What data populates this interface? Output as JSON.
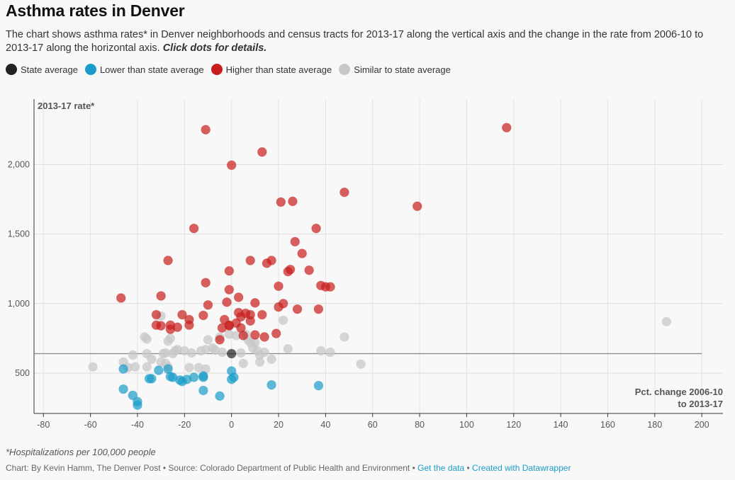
{
  "title": "Asthma rates in Denver",
  "description": {
    "text": "The chart shows asthma rates* in Denver neighborhoods and census tracts for 2013-17 along the vertical axis and the change in the rate from 2006-10 to 2013-17 along the horizontal axis.",
    "emphasis": "Click dots for details."
  },
  "legend": [
    {
      "label": "State average",
      "color": "#222222"
    },
    {
      "label": "Lower than state average",
      "color": "#1a9cc8"
    },
    {
      "label": "Higher than state average",
      "color": "#c71e1d"
    },
    {
      "label": "Similar to state average",
      "color": "#c8c8c8"
    }
  ],
  "notes": "*Hospitalizations per 100,000 people",
  "footer": {
    "credit": "Chart: By Kevin Hamm, The Denver Post • Source: Colorado Department of Public Health and Environment • ",
    "get_data": "Get the data",
    "separator": " • ",
    "created_with": "Created with Datawrapper"
  },
  "chart_data": {
    "type": "scatter",
    "title": "",
    "ylabel": "2013-17 rate*",
    "xlabel_lines": [
      "Pct. change 2006-10",
      "to 2013-17"
    ],
    "xlim": [
      -84,
      209
    ],
    "ylim": [
      210,
      2470
    ],
    "xticks": [
      -80,
      -60,
      -40,
      -20,
      0,
      20,
      40,
      60,
      80,
      100,
      120,
      140,
      160,
      180,
      200
    ],
    "xtick_labels": [
      "-80",
      "-60",
      "-40",
      "-20",
      "0",
      "20",
      "40",
      "60",
      "80",
      "100",
      "120",
      "140",
      "160",
      "180",
      "200"
    ],
    "yticks": [
      500,
      1000,
      1500,
      2000
    ],
    "ytick_labels": [
      "500",
      "1,000",
      "1,500",
      "2,000"
    ],
    "grid": true,
    "state_average": 640,
    "state_average_line_x_end": 200,
    "series": [
      {
        "name": "State average",
        "color": "#222222",
        "points": [
          [
            0,
            640
          ]
        ]
      },
      {
        "name": "Higher than state average",
        "color": "#c71e1d",
        "points": [
          [
            -11,
            2250
          ],
          [
            117,
            2265
          ],
          [
            13,
            2090
          ],
          [
            0,
            1995
          ],
          [
            48,
            1800
          ],
          [
            21,
            1730
          ],
          [
            26,
            1735
          ],
          [
            79,
            1700
          ],
          [
            -16,
            1540
          ],
          [
            36,
            1540
          ],
          [
            27,
            1445
          ],
          [
            30,
            1360
          ],
          [
            -27,
            1310
          ],
          [
            8,
            1310
          ],
          [
            17,
            1310
          ],
          [
            15,
            1290
          ],
          [
            -1,
            1235
          ],
          [
            24,
            1230
          ],
          [
            25,
            1245
          ],
          [
            33,
            1240
          ],
          [
            -11,
            1150
          ],
          [
            20,
            1125
          ],
          [
            38,
            1130
          ],
          [
            40,
            1120
          ],
          [
            42,
            1120
          ],
          [
            -1,
            1100
          ],
          [
            -30,
            1055
          ],
          [
            -47,
            1040
          ],
          [
            3,
            1045
          ],
          [
            -2,
            1010
          ],
          [
            10,
            1005
          ],
          [
            22,
            1000
          ],
          [
            -10,
            990
          ],
          [
            20,
            975
          ],
          [
            28,
            960
          ],
          [
            37,
            960
          ],
          [
            -32,
            920
          ],
          [
            -21,
            920
          ],
          [
            -12,
            915
          ],
          [
            3,
            935
          ],
          [
            6,
            930
          ],
          [
            13,
            920
          ],
          [
            4,
            905
          ],
          [
            8,
            920
          ],
          [
            -18,
            885
          ],
          [
            -3,
            885
          ],
          [
            8,
            875
          ],
          [
            2,
            860
          ],
          [
            -32,
            845
          ],
          [
            -30,
            840
          ],
          [
            -26,
            845
          ],
          [
            -23,
            830
          ],
          [
            -18,
            845
          ],
          [
            -1,
            845
          ],
          [
            -4,
            825
          ],
          [
            -1,
            840
          ],
          [
            4,
            825
          ],
          [
            -26,
            815
          ],
          [
            5,
            770
          ],
          [
            14,
            760
          ],
          [
            10,
            775
          ],
          [
            19,
            785
          ],
          [
            -5,
            740
          ]
        ]
      },
      {
        "name": "Lower than state average",
        "color": "#1a9cc8",
        "points": [
          [
            -46,
            530
          ],
          [
            -27,
            530
          ],
          [
            -31,
            520
          ],
          [
            -34,
            460
          ],
          [
            -35,
            460
          ],
          [
            -26,
            475
          ],
          [
            -25,
            470
          ],
          [
            -22,
            450
          ],
          [
            -21,
            440
          ],
          [
            -19,
            455
          ],
          [
            -16,
            470
          ],
          [
            -12,
            480
          ],
          [
            -12,
            470
          ],
          [
            0,
            515
          ],
          [
            1,
            470
          ],
          [
            0,
            455
          ],
          [
            17,
            415
          ],
          [
            37,
            410
          ],
          [
            -46,
            385
          ],
          [
            -12,
            375
          ],
          [
            -5,
            335
          ],
          [
            -42,
            340
          ],
          [
            -40,
            295
          ],
          [
            -40,
            270
          ]
        ]
      },
      {
        "name": "Similar to state average",
        "color": "#c8c8c8",
        "points": [
          [
            -59,
            545
          ],
          [
            -46,
            580
          ],
          [
            -42,
            630
          ],
          [
            -41,
            545
          ],
          [
            -37,
            760
          ],
          [
            -36,
            745
          ],
          [
            -36,
            640
          ],
          [
            -36,
            545
          ],
          [
            -34,
            600
          ],
          [
            -30,
            580
          ],
          [
            -30,
            910
          ],
          [
            -28,
            645
          ],
          [
            -28,
            570
          ],
          [
            -27,
            730
          ],
          [
            -27,
            545
          ],
          [
            -26,
            750
          ],
          [
            -25,
            640
          ],
          [
            -24,
            660
          ],
          [
            -23,
            670
          ],
          [
            -20,
            660
          ],
          [
            -17,
            645
          ],
          [
            -13,
            660
          ],
          [
            -11,
            670
          ],
          [
            -10,
            740
          ],
          [
            -8,
            680
          ],
          [
            -7,
            665
          ],
          [
            -5,
            760
          ],
          [
            -1,
            780
          ],
          [
            -4,
            650
          ],
          [
            -11,
            530
          ],
          [
            -14,
            540
          ],
          [
            2,
            770
          ],
          [
            4,
            645
          ],
          [
            6,
            780
          ],
          [
            7,
            740
          ],
          [
            8,
            720
          ],
          [
            9,
            680
          ],
          [
            10,
            720
          ],
          [
            11,
            660
          ],
          [
            12,
            630
          ],
          [
            12,
            580
          ],
          [
            14,
            650
          ],
          [
            17,
            600
          ],
          [
            22,
            880
          ],
          [
            24,
            675
          ],
          [
            5,
            570
          ],
          [
            38,
            660
          ],
          [
            42,
            650
          ],
          [
            48,
            760
          ],
          [
            55,
            565
          ],
          [
            185,
            870
          ],
          [
            -44,
            540
          ],
          [
            -18,
            540
          ],
          [
            -29,
            640
          ]
        ]
      }
    ]
  }
}
